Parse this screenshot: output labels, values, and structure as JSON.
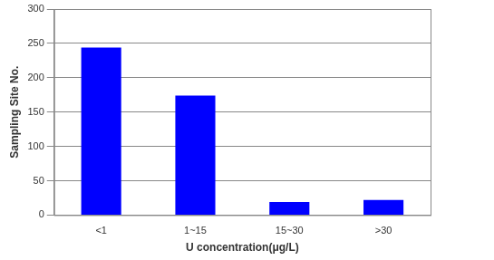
{
  "chart_data": {
    "type": "bar",
    "x_label": "U concentration(μg/L)",
    "y_label": "Sampling Site No.",
    "categories": [
      "<1",
      "1~15",
      "15~30",
      ">30"
    ],
    "values": [
      244,
      174,
      19,
      22
    ],
    "color": "#0000ff",
    "ylim": [
      0,
      300
    ],
    "yticks": [
      0,
      50,
      100,
      150,
      200,
      250,
      300
    ],
    "grid": true
  }
}
